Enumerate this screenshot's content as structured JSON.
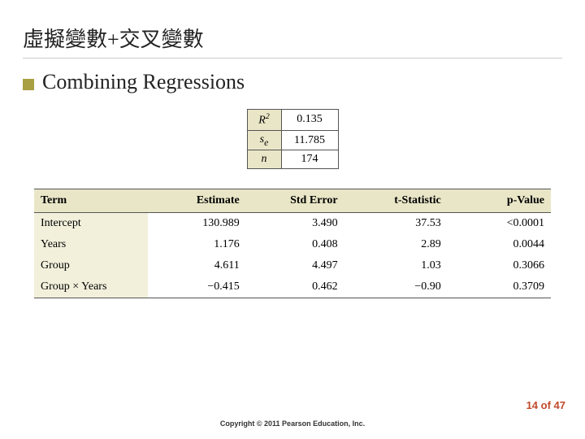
{
  "slide": {
    "title": "虛擬變數+交叉變數",
    "bullet_text": "Combining Regressions"
  },
  "stats": {
    "rows": [
      {
        "label_html": "R<sup>2</sup>",
        "value": "0.135"
      },
      {
        "label_html": "s<sub>e</sub>",
        "value": "11.785"
      },
      {
        "label_html": "n",
        "value": "174"
      }
    ],
    "label_bg": "#e9e6c7",
    "border_color": "#555"
  },
  "regression": {
    "type": "table",
    "columns": [
      "Term",
      "Estimate",
      "Std Error",
      "t-Statistic",
      "p-Value"
    ],
    "rows": [
      [
        "Intercept",
        "130.989",
        "3.490",
        "37.53",
        "<0.0001"
      ],
      [
        "Years",
        "1.176",
        "0.408",
        "2.89",
        "0.0044"
      ],
      [
        "Group",
        "4.611",
        "4.497",
        "1.03",
        "0.3066"
      ],
      [
        "Group × Years",
        "−0.415",
        "0.462",
        "−0.90",
        "0.3709"
      ]
    ],
    "header_bg": "#e9e6c7",
    "firstcol_bg": "#f2f0db",
    "border_color": "#555",
    "font_size": 14
  },
  "footer": {
    "page_current": "14",
    "page_sep": " of ",
    "page_total": "47",
    "copyright": "Copyright © 2011 Pearson Education, Inc."
  },
  "colors": {
    "bullet": "#a8a042",
    "page_counter": "#c04a2a"
  }
}
